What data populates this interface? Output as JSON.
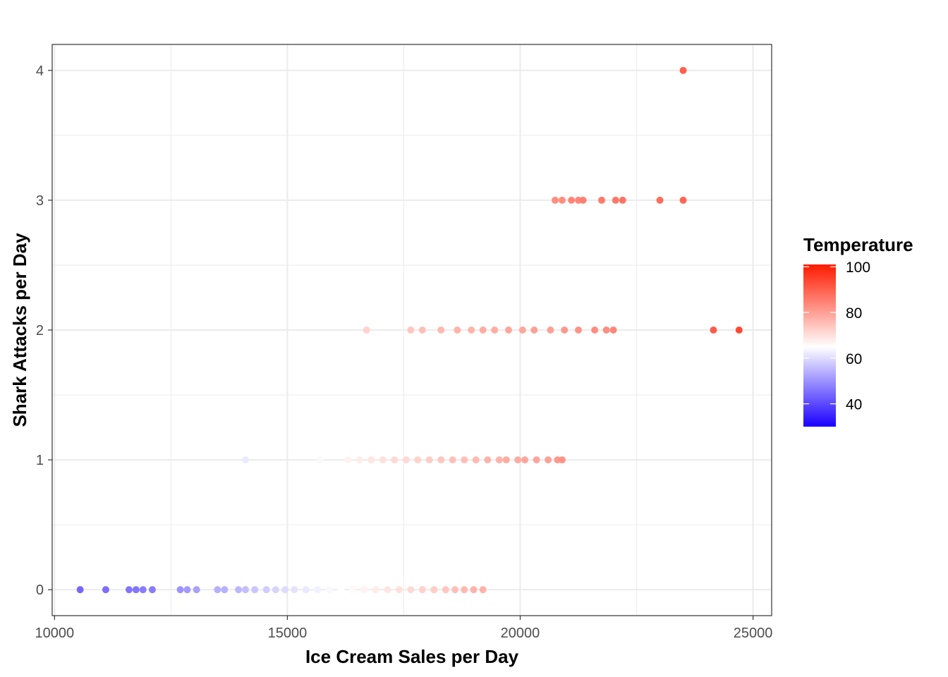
{
  "chart_data": {
    "type": "scatter",
    "xlabel": "Ice Cream Sales per Day",
    "ylabel": "Shark Attacks per Day",
    "xlim": [
      9950,
      25400
    ],
    "ylim": [
      -0.2,
      4.2
    ],
    "x_ticks": [
      10000,
      15000,
      20000,
      25000
    ],
    "y_ticks": [
      0,
      1,
      2,
      3,
      4
    ],
    "grid": true,
    "legend": {
      "title": "Temperature",
      "position": "right",
      "range": [
        30,
        101
      ],
      "ticks": [
        40,
        60,
        80,
        100
      ],
      "gradient": {
        "low": "#1a00ff",
        "mid": "#ffffff",
        "high": "#ff1a00",
        "midpoint": 65
      }
    },
    "points": [
      {
        "x": 10550,
        "y": 0,
        "t": 44
      },
      {
        "x": 11100,
        "y": 0,
        "t": 45
      },
      {
        "x": 11600,
        "y": 0,
        "t": 46
      },
      {
        "x": 11750,
        "y": 0,
        "t": 46
      },
      {
        "x": 11900,
        "y": 0,
        "t": 47
      },
      {
        "x": 12100,
        "y": 0,
        "t": 47
      },
      {
        "x": 12700,
        "y": 0,
        "t": 50
      },
      {
        "x": 12850,
        "y": 0,
        "t": 51
      },
      {
        "x": 13050,
        "y": 0,
        "t": 52
      },
      {
        "x": 13500,
        "y": 0,
        "t": 54
      },
      {
        "x": 13650,
        "y": 0,
        "t": 54
      },
      {
        "x": 13950,
        "y": 0,
        "t": 55
      },
      {
        "x": 14100,
        "y": 0,
        "t": 56
      },
      {
        "x": 14300,
        "y": 0,
        "t": 57
      },
      {
        "x": 14550,
        "y": 0,
        "t": 58
      },
      {
        "x": 14750,
        "y": 0,
        "t": 59
      },
      {
        "x": 14950,
        "y": 0,
        "t": 60
      },
      {
        "x": 15150,
        "y": 0,
        "t": 61
      },
      {
        "x": 15400,
        "y": 0,
        "t": 62
      },
      {
        "x": 15650,
        "y": 0,
        "t": 63
      },
      {
        "x": 15900,
        "y": 0,
        "t": 64
      },
      {
        "x": 16150,
        "y": 0,
        "t": 65
      },
      {
        "x": 16400,
        "y": 0,
        "t": 66
      },
      {
        "x": 16650,
        "y": 0,
        "t": 67
      },
      {
        "x": 16900,
        "y": 0,
        "t": 68
      },
      {
        "x": 17150,
        "y": 0,
        "t": 69
      },
      {
        "x": 17400,
        "y": 0,
        "t": 70
      },
      {
        "x": 17650,
        "y": 0,
        "t": 71
      },
      {
        "x": 17900,
        "y": 0,
        "t": 72
      },
      {
        "x": 18150,
        "y": 0,
        "t": 73
      },
      {
        "x": 18400,
        "y": 0,
        "t": 74
      },
      {
        "x": 18600,
        "y": 0,
        "t": 75
      },
      {
        "x": 18800,
        "y": 0,
        "t": 76
      },
      {
        "x": 19000,
        "y": 0,
        "t": 77
      },
      {
        "x": 19200,
        "y": 0,
        "t": 77
      },
      {
        "x": 14100,
        "y": 1,
        "t": 62
      },
      {
        "x": 15700,
        "y": 1,
        "t": 64
      },
      {
        "x": 16300,
        "y": 1,
        "t": 67
      },
      {
        "x": 16550,
        "y": 1,
        "t": 68
      },
      {
        "x": 16800,
        "y": 1,
        "t": 69
      },
      {
        "x": 17050,
        "y": 1,
        "t": 70
      },
      {
        "x": 17300,
        "y": 1,
        "t": 71
      },
      {
        "x": 17550,
        "y": 1,
        "t": 71
      },
      {
        "x": 17800,
        "y": 1,
        "t": 72
      },
      {
        "x": 18050,
        "y": 1,
        "t": 73
      },
      {
        "x": 18300,
        "y": 1,
        "t": 74
      },
      {
        "x": 18550,
        "y": 1,
        "t": 75
      },
      {
        "x": 18800,
        "y": 1,
        "t": 75
      },
      {
        "x": 19050,
        "y": 1,
        "t": 76
      },
      {
        "x": 19300,
        "y": 1,
        "t": 77
      },
      {
        "x": 19550,
        "y": 1,
        "t": 77
      },
      {
        "x": 19700,
        "y": 1,
        "t": 78
      },
      {
        "x": 19950,
        "y": 1,
        "t": 78
      },
      {
        "x": 20100,
        "y": 1,
        "t": 79
      },
      {
        "x": 20350,
        "y": 1,
        "t": 79
      },
      {
        "x": 20600,
        "y": 1,
        "t": 80
      },
      {
        "x": 20800,
        "y": 1,
        "t": 81
      },
      {
        "x": 20900,
        "y": 1,
        "t": 82
      },
      {
        "x": 16700,
        "y": 2,
        "t": 72
      },
      {
        "x": 17650,
        "y": 2,
        "t": 74
      },
      {
        "x": 17900,
        "y": 2,
        "t": 75
      },
      {
        "x": 18300,
        "y": 2,
        "t": 76
      },
      {
        "x": 18650,
        "y": 2,
        "t": 77
      },
      {
        "x": 18950,
        "y": 2,
        "t": 77
      },
      {
        "x": 19200,
        "y": 2,
        "t": 78
      },
      {
        "x": 19450,
        "y": 2,
        "t": 78
      },
      {
        "x": 19750,
        "y": 2,
        "t": 79
      },
      {
        "x": 20050,
        "y": 2,
        "t": 79
      },
      {
        "x": 20300,
        "y": 2,
        "t": 80
      },
      {
        "x": 20650,
        "y": 2,
        "t": 80
      },
      {
        "x": 20950,
        "y": 2,
        "t": 81
      },
      {
        "x": 21250,
        "y": 2,
        "t": 82
      },
      {
        "x": 21600,
        "y": 2,
        "t": 83
      },
      {
        "x": 21850,
        "y": 2,
        "t": 83
      },
      {
        "x": 22000,
        "y": 2,
        "t": 84
      },
      {
        "x": 24150,
        "y": 2,
        "t": 91
      },
      {
        "x": 24700,
        "y": 2,
        "t": 94
      },
      {
        "x": 20750,
        "y": 3,
        "t": 83
      },
      {
        "x": 20900,
        "y": 3,
        "t": 83
      },
      {
        "x": 21100,
        "y": 3,
        "t": 84
      },
      {
        "x": 21250,
        "y": 3,
        "t": 84
      },
      {
        "x": 21350,
        "y": 3,
        "t": 85
      },
      {
        "x": 21750,
        "y": 3,
        "t": 86
      },
      {
        "x": 22050,
        "y": 3,
        "t": 86
      },
      {
        "x": 22200,
        "y": 3,
        "t": 87
      },
      {
        "x": 23000,
        "y": 3,
        "t": 88
      },
      {
        "x": 23500,
        "y": 3,
        "t": 89
      },
      {
        "x": 23500,
        "y": 4,
        "t": 90
      }
    ]
  }
}
